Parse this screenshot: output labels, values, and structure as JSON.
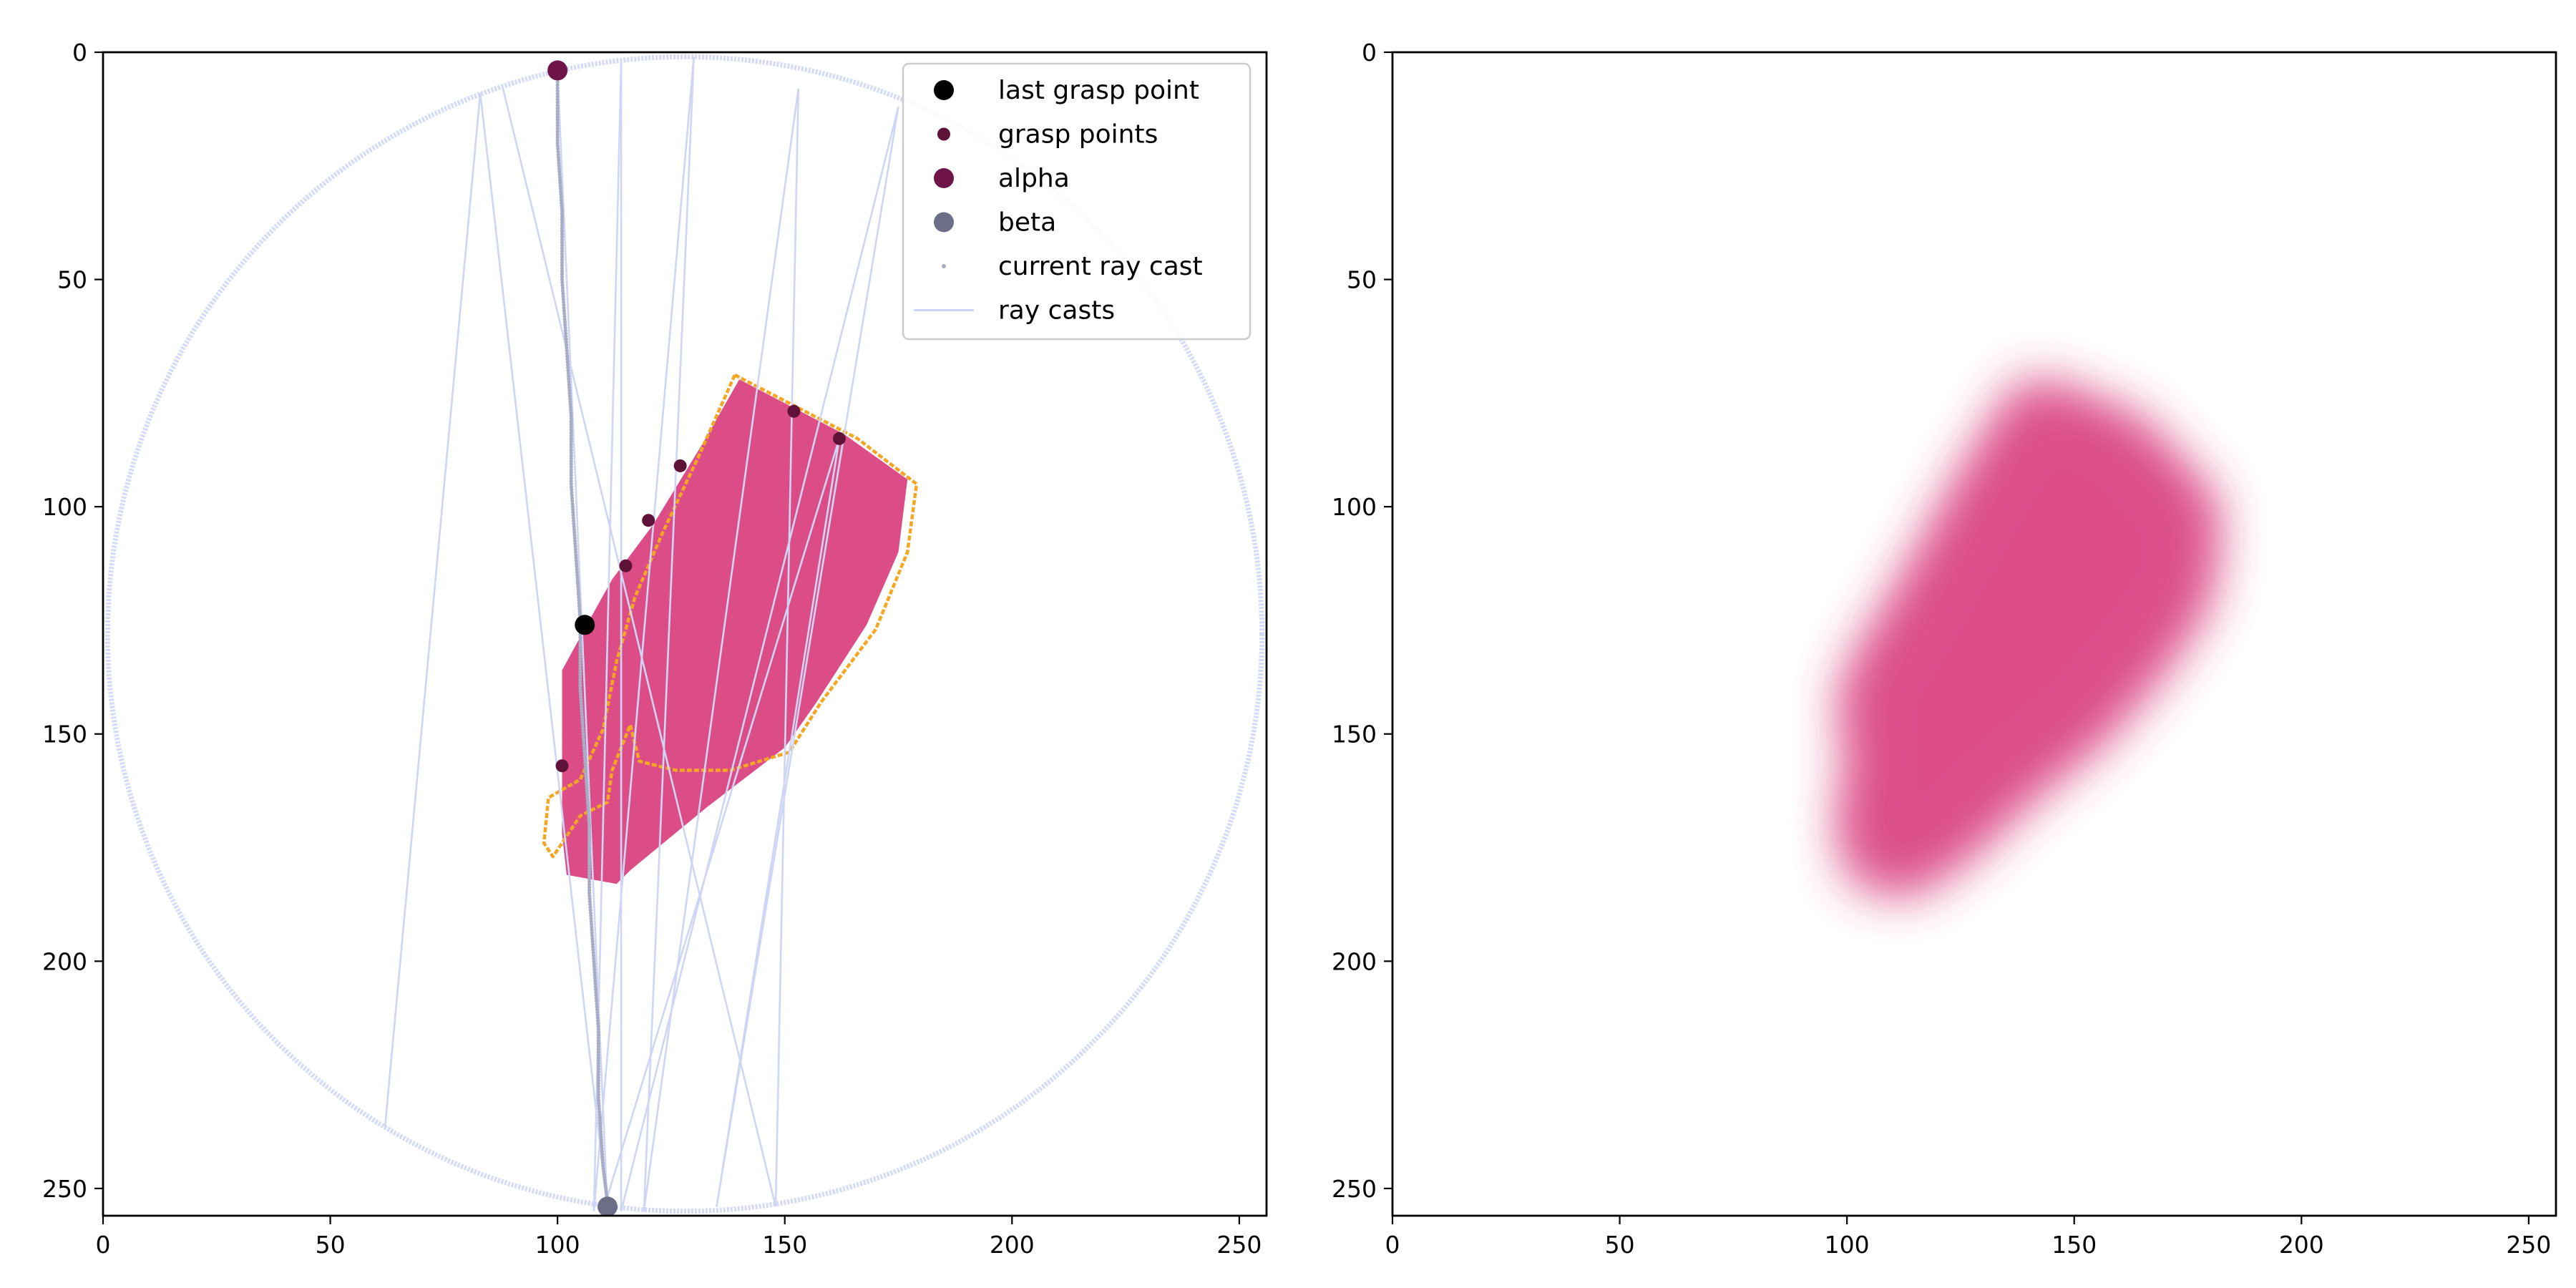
{
  "chart_data": [
    {
      "type": "scatter",
      "panel": "left",
      "title": "",
      "xlabel": "",
      "ylabel": "",
      "xlim": [
        0,
        256
      ],
      "ylim": [
        256,
        0
      ],
      "y_inverted": true,
      "xticks": [
        0,
        50,
        100,
        150,
        200,
        250
      ],
      "yticks": [
        0,
        50,
        100,
        150,
        200,
        250
      ],
      "grid": false,
      "legend_position": "top-right",
      "colors": {
        "shape_fill": "#dc4d88",
        "contour": "#f5a623",
        "circle": "#d4daf7",
        "ray": "#cfd6f5",
        "current_ray": "#a9acc5",
        "grasp": "#5e1238",
        "alpha": "#6e1448",
        "beta": "#6b6e86",
        "last": "#000000"
      },
      "legend": [
        "last grasp point",
        "grasp points",
        "alpha",
        "beta",
        "current ray cast",
        "ray casts"
      ],
      "shape_polygon": [
        [
          140,
          72
        ],
        [
          163,
          84
        ],
        [
          177,
          94
        ],
        [
          175,
          110
        ],
        [
          168,
          126
        ],
        [
          157,
          143
        ],
        [
          150,
          153
        ],
        [
          133,
          166
        ],
        [
          116,
          180
        ],
        [
          113,
          183
        ],
        [
          102,
          181
        ],
        [
          101,
          172
        ],
        [
          101,
          155
        ],
        [
          101,
          136
        ],
        [
          107,
          125
        ],
        [
          112,
          116
        ],
        [
          121,
          104
        ],
        [
          132,
          86
        ]
      ],
      "contour_polygon": [
        [
          139,
          71
        ],
        [
          166,
          85
        ],
        [
          179,
          95
        ],
        [
          177,
          110
        ],
        [
          170,
          127
        ],
        [
          158,
          143
        ],
        [
          151,
          154
        ],
        [
          138,
          158
        ],
        [
          126,
          158
        ],
        [
          118,
          156
        ],
        [
          116,
          148
        ],
        [
          112,
          158
        ],
        [
          111,
          165
        ],
        [
          105,
          168
        ],
        [
          99,
          177
        ],
        [
          97,
          174
        ],
        [
          98,
          164
        ],
        [
          105,
          160
        ],
        [
          110,
          149
        ],
        [
          113,
          134
        ],
        [
          117,
          120
        ],
        [
          123,
          106
        ],
        [
          131,
          89
        ]
      ],
      "circle": {
        "center": [
          128,
          128
        ],
        "radius": 127
      },
      "ray_casts": [
        [
          [
            100,
            4
          ],
          [
            111,
            255
          ]
        ],
        [
          [
            111,
            255
          ],
          [
            83,
            9
          ]
        ],
        [
          [
            83,
            9
          ],
          [
            62,
            237
          ]
        ],
        [
          [
            88,
            8
          ],
          [
            148,
            254
          ]
        ],
        [
          [
            148,
            254
          ],
          [
            153,
            8
          ]
        ],
        [
          [
            153,
            8
          ],
          [
            119,
            255
          ]
        ],
        [
          [
            119,
            255
          ],
          [
            130,
            1
          ]
        ],
        [
          [
            130,
            1
          ],
          [
            108,
            255
          ]
        ],
        [
          [
            108,
            255
          ],
          [
            114,
            2
          ]
        ],
        [
          [
            114,
            2
          ],
          [
            114,
            255
          ]
        ],
        [
          [
            114,
            255
          ],
          [
            175,
            12
          ]
        ],
        [
          [
            175,
            12
          ],
          [
            135,
            254
          ]
        ],
        [
          [
            135,
            254
          ],
          [
            162,
            85
          ]
        ],
        [
          [
            162,
            85
          ],
          [
            110,
            255
          ]
        ]
      ],
      "current_ray_cast": {
        "x": [
          100,
          100,
          101,
          101,
          102,
          103,
          103,
          104,
          105,
          105,
          106,
          107,
          107,
          108,
          109,
          109,
          110,
          111
        ],
        "y": [
          4,
          20,
          35,
          50,
          65,
          80,
          95,
          110,
          125,
          140,
          155,
          170,
          185,
          200,
          215,
          230,
          245,
          253
        ]
      },
      "grasp_points": {
        "x": [
          101,
          115,
          120,
          127,
          152,
          162
        ],
        "y": [
          157,
          113,
          103,
          91,
          79,
          85
        ]
      },
      "last_grasp_point": {
        "x": 106,
        "y": 126
      },
      "alpha": {
        "x": 100,
        "y": 4
      },
      "beta": {
        "x": 111,
        "y": 254
      }
    },
    {
      "type": "heatmap",
      "panel": "right",
      "title": "",
      "xlabel": "",
      "ylabel": "",
      "xlim": [
        0,
        256
      ],
      "ylim": [
        256,
        0
      ],
      "y_inverted": true,
      "xticks": [
        0,
        50,
        100,
        150,
        200,
        250
      ],
      "yticks": [
        0,
        50,
        100,
        150,
        200,
        250
      ],
      "grid": false,
      "colors": {
        "fill": "#dc4d88"
      },
      "blob_polygon": [
        [
          140,
          73
        ],
        [
          163,
          82
        ],
        [
          180,
          100
        ],
        [
          178,
          120
        ],
        [
          168,
          135
        ],
        [
          155,
          150
        ],
        [
          140,
          162
        ],
        [
          125,
          176
        ],
        [
          113,
          184
        ],
        [
          102,
          181
        ],
        [
          100,
          168
        ],
        [
          103,
          155
        ],
        [
          100,
          145
        ],
        [
          103,
          135
        ],
        [
          110,
          124
        ],
        [
          118,
          110
        ],
        [
          128,
          92
        ]
      ]
    }
  ]
}
